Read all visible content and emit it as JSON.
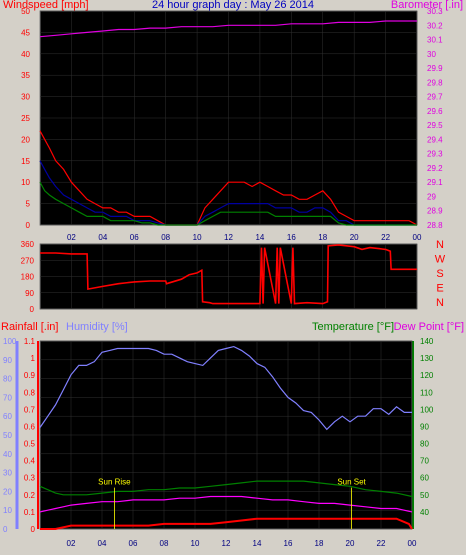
{
  "chart_data": [
    {
      "id": "wind",
      "type": "line",
      "title": "24 hour graph day : May 26 2014",
      "ylabel_left": "Windspeed [mph]",
      "ylabel_right": "Barometer [.in]",
      "ylim_left": [
        0,
        50
      ],
      "yticks_left": [
        "0",
        "5",
        "10",
        "15",
        "20",
        "25",
        "30",
        "35",
        "40",
        "45",
        "50"
      ],
      "ylim_right": [
        28.8,
        30.3
      ],
      "yticks_right": [
        "28.8",
        "28.9",
        "29",
        "29.1",
        "29.2",
        "29.3",
        "29.4",
        "29.5",
        "29.6",
        "29.7",
        "29.8",
        "29.9",
        "30",
        "30.1",
        "30.2",
        "30.3"
      ],
      "xlim": [
        0,
        24
      ],
      "xticks": [
        "02",
        "04",
        "06",
        "08",
        "10",
        "12",
        "14",
        "16",
        "18",
        "20",
        "22",
        "00"
      ],
      "series": [
        {
          "key": "barometer",
          "color": "#e000e0",
          "axis": "right",
          "x": [
            0,
            1,
            2,
            3,
            4,
            5,
            6,
            7,
            8,
            9,
            10,
            11,
            12,
            13,
            14,
            15,
            16,
            17,
            18,
            19,
            20,
            21,
            22,
            23,
            24
          ],
          "values": [
            30.12,
            30.13,
            30.14,
            30.15,
            30.16,
            30.17,
            30.17,
            30.18,
            30.18,
            30.19,
            30.19,
            30.19,
            30.2,
            30.2,
            30.2,
            30.2,
            30.21,
            30.21,
            30.21,
            30.22,
            30.22,
            30.22,
            30.23,
            30.23,
            30.23
          ]
        },
        {
          "key": "gust",
          "color": "#ff0000",
          "axis": "left",
          "x": [
            0,
            0.3,
            0.6,
            1,
            1.5,
            2,
            2.5,
            3,
            3.5,
            4,
            4.5,
            5,
            5.5,
            6,
            6.5,
            7,
            7.5,
            8,
            8.5,
            9,
            9.5,
            10,
            10.5,
            11,
            11.5,
            12,
            12.5,
            13,
            13.5,
            14,
            14.5,
            15,
            15.5,
            16,
            16.5,
            17,
            17.5,
            18,
            18.5,
            19,
            19.5,
            20,
            20.5,
            21,
            21.5,
            22,
            22.5,
            23,
            23.5,
            24
          ],
          "values": [
            22,
            20,
            18,
            15,
            13,
            10,
            8,
            6,
            5,
            4,
            4,
            3,
            3,
            2,
            2,
            2,
            1,
            0,
            0,
            0,
            0,
            0,
            4,
            6,
            8,
            10,
            10,
            10,
            9,
            10,
            9,
            8,
            7,
            7,
            6,
            6,
            7,
            8,
            6,
            3,
            2,
            1,
            1,
            1,
            1,
            1,
            1,
            1,
            1,
            0
          ]
        },
        {
          "key": "average",
          "color": "#0000a0",
          "axis": "left",
          "x": [
            0,
            0.3,
            0.6,
            1,
            1.5,
            2,
            2.5,
            3,
            3.5,
            4,
            4.5,
            5,
            5.5,
            6,
            6.5,
            7,
            7.5,
            8,
            8.5,
            9,
            9.5,
            10,
            10.5,
            11,
            11.5,
            12,
            12.5,
            13,
            13.5,
            14,
            14.5,
            15,
            15.5,
            16,
            16.5,
            17,
            17.5,
            18,
            18.5,
            19,
            19.5,
            20,
            20.5,
            21,
            21.5,
            22,
            22.5,
            23,
            23.5,
            24
          ],
          "values": [
            15,
            13,
            11,
            9,
            7,
            6,
            5,
            4,
            3,
            3,
            2,
            2,
            2,
            1,
            1,
            1,
            0.5,
            0,
            0,
            0,
            0,
            0,
            2,
            3,
            4,
            5,
            5,
            5,
            5,
            5,
            5,
            4,
            4,
            4,
            3,
            3,
            4,
            4,
            3,
            1,
            1,
            0,
            0,
            0,
            0,
            0,
            0,
            0,
            0,
            0
          ]
        },
        {
          "key": "speed",
          "color": "#008000",
          "axis": "left",
          "x": [
            0,
            0.3,
            0.6,
            1,
            1.5,
            2,
            2.5,
            3,
            3.5,
            4,
            4.5,
            5,
            5.5,
            6,
            6.5,
            7,
            7.5,
            8,
            8.5,
            9,
            9.5,
            10,
            10.5,
            11,
            11.5,
            12,
            12.5,
            13,
            13.5,
            14,
            14.5,
            15,
            15.5,
            16,
            16.5,
            17,
            17.5,
            18,
            18.5,
            19,
            19.5,
            20,
            20.5,
            21,
            21.5,
            22,
            22.5,
            23,
            23.5,
            24
          ],
          "values": [
            10,
            8,
            7,
            6,
            5,
            4,
            3,
            2,
            2,
            2,
            1,
            1,
            1,
            1,
            0.5,
            0.5,
            0,
            0,
            0,
            0,
            0,
            0,
            1,
            2,
            3,
            3,
            3,
            3,
            3,
            3,
            3,
            2,
            2,
            2,
            2,
            2,
            2,
            2,
            2,
            0.5,
            0,
            0,
            0,
            0,
            0,
            0,
            0,
            0,
            0,
            0
          ]
        }
      ]
    },
    {
      "id": "direction",
      "type": "line",
      "ylim": [
        0,
        360
      ],
      "yticks": [
        "0",
        "90",
        "180",
        "270",
        "360"
      ],
      "compass_labels": [
        "N",
        "W",
        "S",
        "E",
        "N"
      ],
      "xlim": [
        0,
        24
      ],
      "xticks": [
        "02",
        "04",
        "06",
        "08",
        "10",
        "12",
        "14",
        "16",
        "18",
        "20",
        "22",
        "00"
      ],
      "series": [
        {
          "key": "wind_direction",
          "color": "#ff0000",
          "x": [
            0,
            1,
            2,
            3,
            3.05,
            4,
            5,
            6,
            7,
            8,
            8.05,
            9,
            9.5,
            10,
            10.3,
            10.35,
            10.8,
            11,
            12,
            13,
            14,
            14.1,
            14.2,
            14.3,
            15,
            15.1,
            15.2,
            15.3,
            16,
            16.1,
            16.2,
            17,
            18,
            18.3,
            18.35,
            19,
            20,
            20.5,
            21,
            22,
            22.3,
            22.35,
            23,
            24
          ],
          "values": [
            310,
            310,
            305,
            305,
            110,
            125,
            140,
            150,
            155,
            155,
            140,
            165,
            190,
            200,
            215,
            40,
            35,
            30,
            30,
            30,
            30,
            340,
            30,
            340,
            30,
            340,
            30,
            340,
            30,
            340,
            30,
            35,
            30,
            40,
            350,
            355,
            345,
            330,
            340,
            330,
            320,
            220,
            220,
            220
          ]
        }
      ]
    },
    {
      "id": "climate",
      "type": "line",
      "ylabel_rain": "Rainfall [.in]",
      "ylabel_humidity": "Humidity [%]",
      "ylabel_temperature": "Temperature [°F]",
      "ylabel_dewpoint": "Dew Point [°F]",
      "ylim_humidity": [
        0,
        100
      ],
      "yticks_humidity": [
        "0",
        "10",
        "20",
        "30",
        "40",
        "50",
        "60",
        "70",
        "80",
        "90",
        "100"
      ],
      "ylim_rain": [
        0,
        1.1
      ],
      "yticks_rain": [
        "0",
        "0.1",
        "0.2",
        "0.3",
        "0.4",
        "0.5",
        "0.6",
        "0.7",
        "0.8",
        "0.9",
        "1",
        "1.1"
      ],
      "ylim_temp": [
        30,
        140
      ],
      "yticks_temp": [
        "40",
        "50",
        "60",
        "70",
        "80",
        "90",
        "100",
        "110",
        "120",
        "130",
        "140"
      ],
      "xlim": [
        0,
        24
      ],
      "xticks": [
        "02",
        "04",
        "06",
        "08",
        "10",
        "12",
        "14",
        "16",
        "18",
        "20",
        "22",
        "00"
      ],
      "annotations": [
        {
          "text": "Sun Rise",
          "x": 4.8,
          "y": 0.26
        },
        {
          "text": "Sun Set",
          "x": 20.1,
          "y": 0.26
        }
      ],
      "annotation_color": "#ffff00",
      "series": [
        {
          "key": "humidity",
          "color": "#8080ff",
          "axis": "humidity",
          "x": [
            0,
            0.5,
            1,
            1.5,
            2,
            2.5,
            3,
            3.5,
            4,
            4.5,
            5,
            5.5,
            6,
            6.5,
            7,
            7.5,
            8,
            8.5,
            9,
            9.5,
            10,
            10.5,
            11,
            11.5,
            12,
            12.5,
            13,
            13.5,
            14,
            14.5,
            15,
            15.5,
            16,
            16.5,
            17,
            17.5,
            18,
            18.5,
            19,
            19.5,
            20,
            20.5,
            21,
            21.5,
            22,
            22.5,
            23,
            23.5,
            24
          ],
          "values": [
            54,
            60,
            66,
            74,
            82,
            87,
            87,
            89,
            94,
            95,
            96,
            96,
            96,
            96,
            96,
            95,
            93,
            93,
            91,
            89,
            88,
            87,
            91,
            95,
            96,
            97,
            95,
            92,
            88,
            86,
            81,
            75,
            70,
            67,
            63,
            62,
            58,
            53,
            57,
            60,
            57,
            60,
            60,
            64,
            64,
            61,
            65,
            62,
            62
          ]
        },
        {
          "key": "temperature",
          "color": "#008000",
          "axis": "temp",
          "x": [
            0,
            0.5,
            1,
            1.5,
            2,
            3,
            4,
            5,
            6,
            7,
            8,
            9,
            10,
            11,
            12,
            13,
            14,
            15,
            16,
            17,
            18,
            19,
            20,
            21,
            22,
            23,
            24
          ],
          "values": [
            55,
            53,
            51,
            50,
            50,
            50,
            51,
            52,
            52,
            53,
            53,
            54,
            54,
            55,
            56,
            57,
            58,
            58,
            58,
            58,
            57,
            56,
            55,
            53,
            52,
            51,
            49
          ]
        },
        {
          "key": "dew_point",
          "color": "#ff00ff",
          "axis": "temp",
          "x": [
            0,
            0.5,
            1,
            1.5,
            2,
            3,
            4,
            5,
            6,
            7,
            8,
            9,
            10,
            11,
            12,
            13,
            14,
            15,
            16,
            17,
            18,
            19,
            20,
            21,
            22,
            23,
            24
          ],
          "values": [
            40,
            41,
            42,
            43,
            44,
            45,
            46,
            46,
            47,
            47,
            47,
            48,
            48,
            49,
            49,
            49,
            48,
            47,
            47,
            46,
            45,
            45,
            44,
            43,
            42,
            42,
            40
          ]
        },
        {
          "key": "rainfall",
          "color": "#ff0000",
          "axis": "rain",
          "x": [
            0,
            1,
            2,
            3,
            4,
            5,
            6,
            7,
            8,
            9,
            10,
            11,
            12,
            13,
            14,
            15,
            16,
            17,
            18,
            19,
            20,
            21,
            22,
            23,
            23.8,
            24
          ],
          "values": [
            0,
            0,
            0.02,
            0.02,
            0.02,
            0.02,
            0.02,
            0.02,
            0.03,
            0.03,
            0.03,
            0.03,
            0.04,
            0.05,
            0.06,
            0.06,
            0.06,
            0.06,
            0.06,
            0.06,
            0.06,
            0.06,
            0.06,
            0.06,
            0.03,
            0
          ]
        }
      ]
    }
  ]
}
